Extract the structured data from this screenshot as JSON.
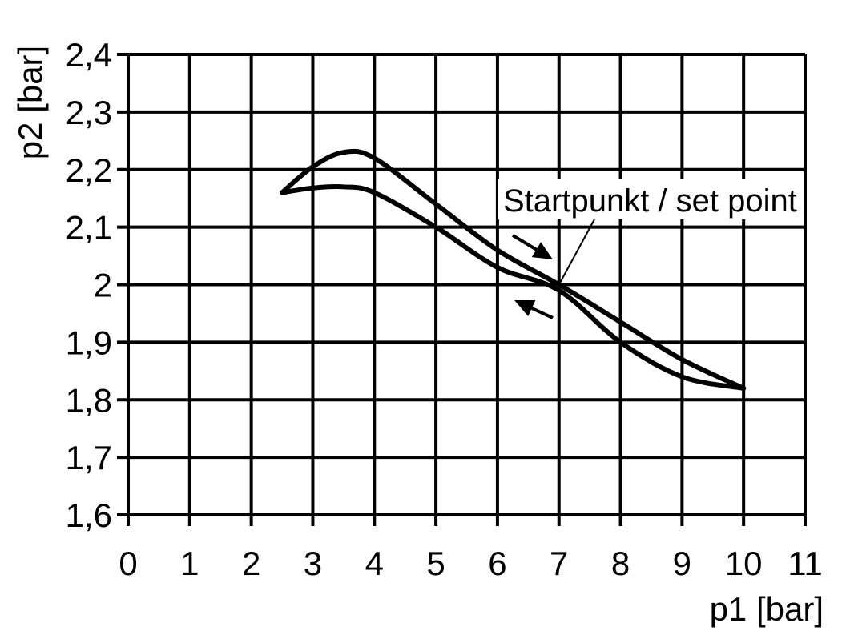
{
  "chart_data": {
    "type": "line",
    "title": "",
    "xlabel": "p1 [bar]",
    "ylabel": "p2 [bar]",
    "xlim": [
      0,
      11
    ],
    "ylim": [
      1.6,
      2.4
    ],
    "grid": true,
    "xticks": [
      "0",
      "1",
      "2",
      "3",
      "4",
      "5",
      "6",
      "7",
      "8",
      "9",
      "10",
      "11"
    ],
    "yticks": [
      "1,6",
      "1,7",
      "1,8",
      "1,9",
      "2",
      "2,1",
      "2,2",
      "2,3",
      "2,4"
    ],
    "series": [
      {
        "x": [
          2.5,
          3.0,
          3.5,
          4.0,
          5.0,
          6.0,
          7.0,
          8.0,
          9.0,
          10.0
        ],
        "y": [
          2.16,
          2.205,
          2.23,
          2.22,
          2.14,
          2.06,
          2.0,
          1.935,
          1.87,
          1.82
        ]
      },
      {
        "x": [
          2.5,
          3.0,
          3.5,
          4.0,
          5.0,
          6.0,
          7.0,
          8.0,
          9.0,
          10.0
        ],
        "y": [
          2.16,
          2.168,
          2.17,
          2.16,
          2.1,
          2.03,
          1.99,
          1.9,
          1.84,
          1.82
        ]
      }
    ],
    "annotation": {
      "text": "Startpunkt / set point",
      "x": 7,
      "y": 2.0
    },
    "line_color": "#000000"
  }
}
